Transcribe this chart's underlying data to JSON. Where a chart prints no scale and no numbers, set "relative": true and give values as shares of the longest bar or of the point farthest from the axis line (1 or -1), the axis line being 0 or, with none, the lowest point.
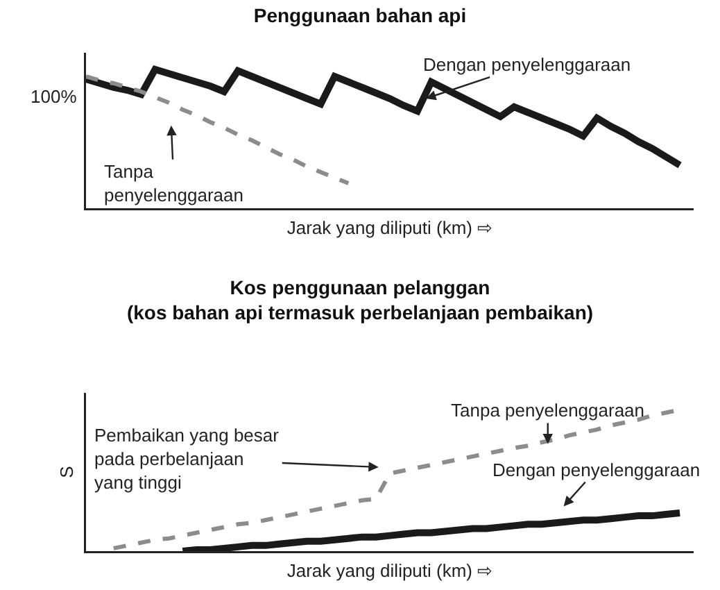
{
  "chart_data": [
    {
      "type": "line",
      "title": "Penggunaan bahan api",
      "xlabel": "Jarak yang diliputi (km) ⇨",
      "relative": true,
      "categories": [
        null,
        null,
        null,
        null,
        null,
        null,
        null,
        null,
        null,
        null,
        null,
        null,
        null,
        null,
        null,
        null,
        null,
        null,
        null,
        null,
        null,
        null,
        null,
        null,
        null,
        null,
        null,
        null,
        null,
        null,
        null,
        null,
        null,
        null,
        null,
        null,
        null,
        null,
        null,
        null,
        null,
        null,
        null,
        null,
        null
      ],
      "series": [
        {
          "color": "#1a1a1a",
          "line_style": "solid",
          "values": [
            0.93,
            0.9,
            0.87,
            0.85,
            0.82,
            1.0,
            0.97,
            0.94,
            0.91,
            0.88,
            0.84,
            0.99,
            0.95,
            0.91,
            0.87,
            0.83,
            0.79,
            0.75,
            0.95,
            0.91,
            0.87,
            0.83,
            0.79,
            0.74,
            0.7,
            0.91,
            0.86,
            0.81,
            0.76,
            0.71,
            0.66,
            0.73,
            0.69,
            0.65,
            0.61,
            0.57,
            0.52,
            0.65,
            0.59,
            0.54,
            0.48,
            0.43,
            0.37,
            0.31,
            null
          ]
        },
        {
          "color": "#8c8c8c",
          "line_style": "dashed",
          "values": [
            0.95,
            0.92,
            0.9,
            0.87,
            0.84,
            0.8,
            0.76,
            0.71,
            0.67,
            0.62,
            0.58,
            0.53,
            0.49,
            0.44,
            0.39,
            0.35,
            0.3,
            0.26,
            0.22,
            0.18,
            null,
            null,
            null,
            null,
            null,
            null,
            null,
            null,
            null,
            null,
            null,
            null,
            null,
            null,
            null,
            null,
            null,
            null,
            null,
            null,
            null,
            null,
            null,
            null,
            null
          ]
        }
      ],
      "annotations": [
        "100%",
        "Dengan penyelenggaraan",
        "Tanpa\npenyelenggaraan"
      ]
    },
    {
      "type": "line",
      "title": "Kos penggunaan pelanggan",
      "subtitle": "(kos bahan api termasuk perbelanjaan pembaikan)",
      "xlabel": "Jarak yang diliputi (km) ⇨",
      "ylabel": "S",
      "relative": true,
      "categories": [
        null,
        null,
        null,
        null,
        null,
        null,
        null,
        null,
        null,
        null,
        null,
        null,
        null,
        null,
        null,
        null,
        null,
        null,
        null,
        null,
        null,
        null,
        null,
        null,
        null,
        null,
        null,
        null,
        null,
        null,
        null,
        null,
        null,
        null,
        null,
        null,
        null,
        null,
        null,
        null,
        null,
        null,
        null,
        null,
        null
      ],
      "series": [
        {
          "color": "#8c8c8c",
          "line_style": "dashed",
          "values": [
            null,
            null,
            0.02,
            0.04,
            0.06,
            0.08,
            0.09,
            0.11,
            0.13,
            0.15,
            0.17,
            0.19,
            0.2,
            0.22,
            0.24,
            0.26,
            0.28,
            0.3,
            0.32,
            0.34,
            0.36,
            0.37,
            0.55,
            0.57,
            0.59,
            0.61,
            0.63,
            0.65,
            0.67,
            0.69,
            0.71,
            0.73,
            0.745,
            0.77,
            0.79,
            0.82,
            0.84,
            0.86,
            0.89,
            0.91,
            0.93,
            0.96,
            0.98,
            1.0,
            null
          ]
        },
        {
          "color": "#1a1a1a",
          "line_style": "solid",
          "values": [
            null,
            null,
            null,
            null,
            null,
            null,
            null,
            0,
            0.01,
            0.01,
            0.02,
            0.03,
            0.04,
            0.04,
            0.05,
            0.06,
            0.07,
            0.07,
            0.08,
            0.09,
            0.1,
            0.1,
            0.11,
            0.12,
            0.13,
            0.13,
            0.14,
            0.15,
            0.16,
            0.16,
            0.17,
            0.18,
            0.19,
            0.19,
            0.2,
            0.21,
            0.22,
            0.22,
            0.23,
            0.24,
            0.25,
            0.25,
            0.26,
            0.27,
            null
          ]
        }
      ],
      "annotations": [
        "Tanpa penyelenggaraan",
        "Dengan penyelenggaraan",
        "Pembaikan yang besar\npada perbelanjaan\nyang tinggi"
      ]
    }
  ]
}
